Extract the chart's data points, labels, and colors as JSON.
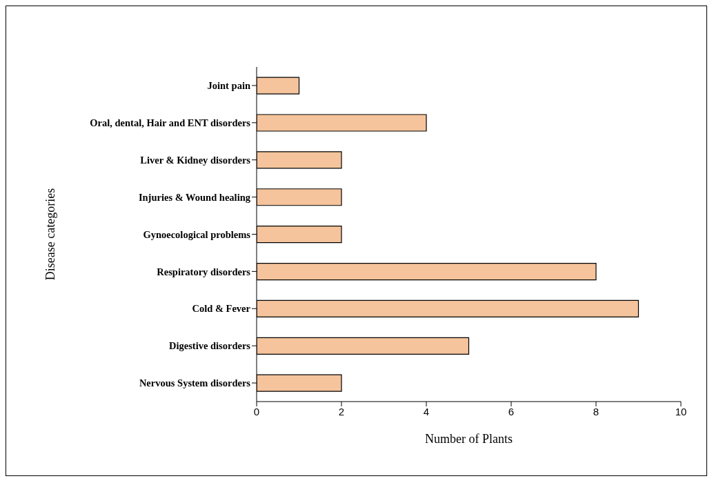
{
  "chart_data": {
    "type": "bar",
    "orientation": "horizontal",
    "categories": [
      "Joint pain",
      "Oral, dental, Hair and ENT disorders",
      "Liver & Kidney disorders",
      "Injuries & Wound healing",
      "Gynoecological problems",
      "Respiratory disorders",
      "Cold & Fever",
      "Digestive disorders",
      "Nervous System disorders"
    ],
    "values": [
      1,
      4,
      2,
      2,
      2,
      8,
      9,
      5,
      2
    ],
    "color": "#f5c49c",
    "xlabel": "Number of Plants",
    "ylabel": "Disease categories",
    "xlim": [
      0,
      10
    ],
    "xticks": [
      0,
      2,
      4,
      6,
      8,
      10
    ],
    "grid": false
  }
}
